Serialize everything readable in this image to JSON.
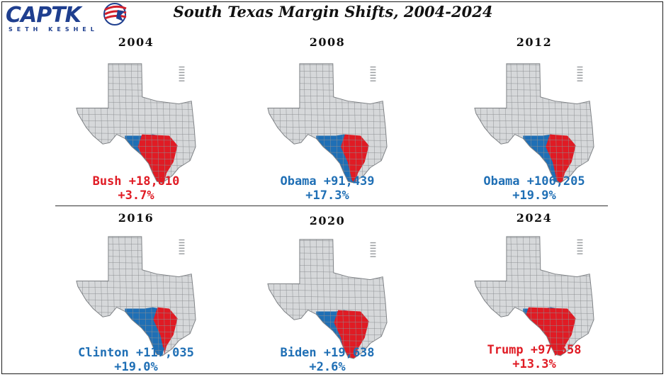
{
  "logo": {
    "name": "CAPTK",
    "subtitle": "SETH KESHEL"
  },
  "title": "South Texas Margin Shifts, 2004-2024",
  "colors": {
    "dem": "#1f6fb5",
    "rep": "#e01b24",
    "land": "#d6d8da",
    "line": "#8c8f92"
  },
  "panels": [
    {
      "year": "2004",
      "winner": "Bush +18,810",
      "pct": "+3.7%",
      "party": "rep",
      "red_share": 0.62
    },
    {
      "year": "2008",
      "winner": "Obama +91,439",
      "pct": "+17.3%",
      "party": "dem",
      "red_share": 0.38
    },
    {
      "year": "2012",
      "winner": "Obama +106,205",
      "pct": "+19.9%",
      "party": "dem",
      "red_share": 0.42
    },
    {
      "year": "2016",
      "winner": "Clinton +117,035",
      "pct": "+19.0%",
      "party": "dem",
      "red_share": 0.3
    },
    {
      "year": "2020",
      "winner": "Biden +19,638",
      "pct": "+2.6%",
      "party": "dem",
      "red_share": 0.52
    },
    {
      "year": "2024",
      "winner": "Trump +97,558",
      "pct": "+13.3%",
      "party": "rep",
      "red_share": 0.86
    }
  ]
}
